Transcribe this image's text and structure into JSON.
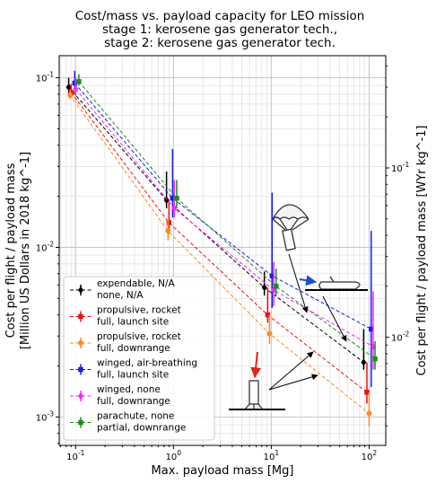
{
  "chart_data": {
    "type": "scatter",
    "title": [
      "Cost/mass vs. payload capacity for LEO mission",
      "stage 1: kerosene gas generator tech.,",
      "stage 2: kerosene gas generator tech."
    ],
    "xlabel": "Max. payload mass [Mg]",
    "ylabel": [
      "Cost per flight / payload mass",
      "[Million US Dollars in 2018 kg^-1]"
    ],
    "ylabel_right": "Cost per flight / payload mass [WYr kg^-1]",
    "xscale": "log",
    "yscale": "log",
    "xlim": [
      0.068,
      148
    ],
    "ylim": [
      0.00068,
      0.135
    ],
    "ylim_right": [
      0.0023,
      0.46
    ],
    "x_tick_labels": [
      "10^-1",
      "10^0",
      "10^1",
      "10^2"
    ],
    "y_tick_labels": [
      "10^-3",
      "10^-2",
      "10^-1"
    ],
    "y_right_tick_labels": [
      "10^-2",
      "10^-1"
    ],
    "grid": true,
    "legend_position": "lower-left",
    "series": [
      {
        "name": "expendable, N/A\nnone, N/A",
        "color": "#000000",
        "marker": "diamond",
        "x": [
          0.085,
          0.85,
          8.5,
          88
        ],
        "y": [
          0.088,
          0.019,
          0.0058,
          0.0021
        ],
        "err_low": [
          0.08,
          0.017,
          0.0052,
          0.0019
        ],
        "err_high": [
          0.1,
          0.028,
          0.0072,
          0.0033
        ]
      },
      {
        "name": "propulsive, rocket\nfull, launch site",
        "color": "#ee1111",
        "marker": "square",
        "x": [
          0.09,
          0.9,
          9.2,
          95
        ],
        "y": [
          0.082,
          0.014,
          0.004,
          0.0014
        ],
        "err_low": [
          0.078,
          0.012,
          0.0036,
          0.0012
        ],
        "err_high": [
          0.092,
          0.019,
          0.0058,
          0.0021
        ]
      },
      {
        "name": "propulsive, rocket\nfull, downrange",
        "color": "#ff8a24",
        "marker": "circle",
        "x": [
          0.088,
          0.88,
          9.6,
          100
        ],
        "y": [
          0.079,
          0.0125,
          0.0031,
          0.00105
        ],
        "err_low": [
          0.075,
          0.011,
          0.0027,
          0.00088
        ],
        "err_high": [
          0.085,
          0.0145,
          0.004,
          0.0014
        ]
      },
      {
        "name": "winged, air-breathing\nfull, launch site",
        "color": "#1a1aee",
        "marker": "square",
        "x": [
          0.098,
          0.98,
          10.2,
          105
        ],
        "y": [
          0.093,
          0.0195,
          0.0068,
          0.0033
        ],
        "err_low": [
          0.082,
          0.015,
          0.0044,
          0.0015
        ],
        "err_high": [
          0.11,
          0.038,
          0.021,
          0.0125
        ]
      },
      {
        "name": "winged, none\nfull, downrange",
        "color": "#ff22ff",
        "marker": "diamond",
        "x": [
          0.1,
          1.02,
          10.6,
          110
        ],
        "y": [
          0.086,
          0.017,
          0.0056,
          0.0026
        ],
        "err_low": [
          0.078,
          0.015,
          0.0045,
          0.0019
        ],
        "err_high": [
          0.1,
          0.025,
          0.0082,
          0.0055
        ]
      },
      {
        "name": "parachute, none\npartial, downrange",
        "color": "#1e8c1e",
        "marker": "square",
        "x": [
          0.108,
          1.08,
          11.2,
          115
        ],
        "y": [
          0.095,
          0.0195,
          0.0059,
          0.0022
        ],
        "err_low": [
          0.09,
          0.017,
          0.0052,
          0.0019
        ],
        "err_high": [
          0.105,
          0.025,
          0.0075,
          0.0028
        ]
      }
    ]
  }
}
